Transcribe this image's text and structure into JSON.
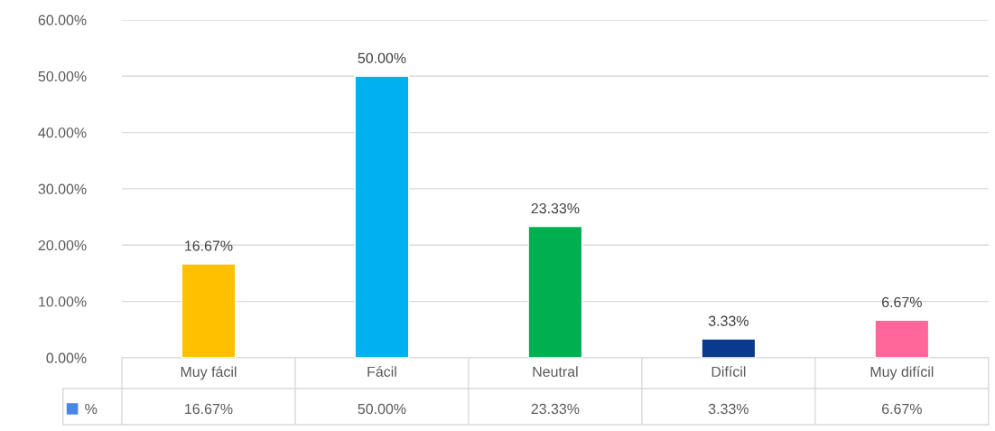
{
  "chart_data": {
    "type": "bar",
    "categories": [
      "Muy fácil",
      "Fácil",
      "Neutral",
      "Difícil",
      "Muy difícil"
    ],
    "series": [
      {
        "name": "%",
        "color": "#4a86e8",
        "colors": [
          "#ffc000",
          "#00b0f0",
          "#00b050",
          "#0a3a8c",
          "#ff6699"
        ],
        "values": [
          16.67,
          50.0,
          23.33,
          3.33,
          6.67
        ],
        "value_labels": [
          "16.67%",
          "50.00%",
          "23.33%",
          "3.33%",
          "6.67%"
        ]
      }
    ],
    "ylim": [
      0,
      60
    ],
    "yticks": [
      {
        "value": 0,
        "label": "0.00%"
      },
      {
        "value": 10,
        "label": "10.00%"
      },
      {
        "value": 20,
        "label": "20.00%"
      },
      {
        "value": 30,
        "label": "30.00%"
      },
      {
        "value": 40,
        "label": "40.00%"
      },
      {
        "value": 50,
        "label": "50.00%"
      },
      {
        "value": 60,
        "label": "60.00%"
      }
    ],
    "grid": "y",
    "legend": "bottom"
  }
}
